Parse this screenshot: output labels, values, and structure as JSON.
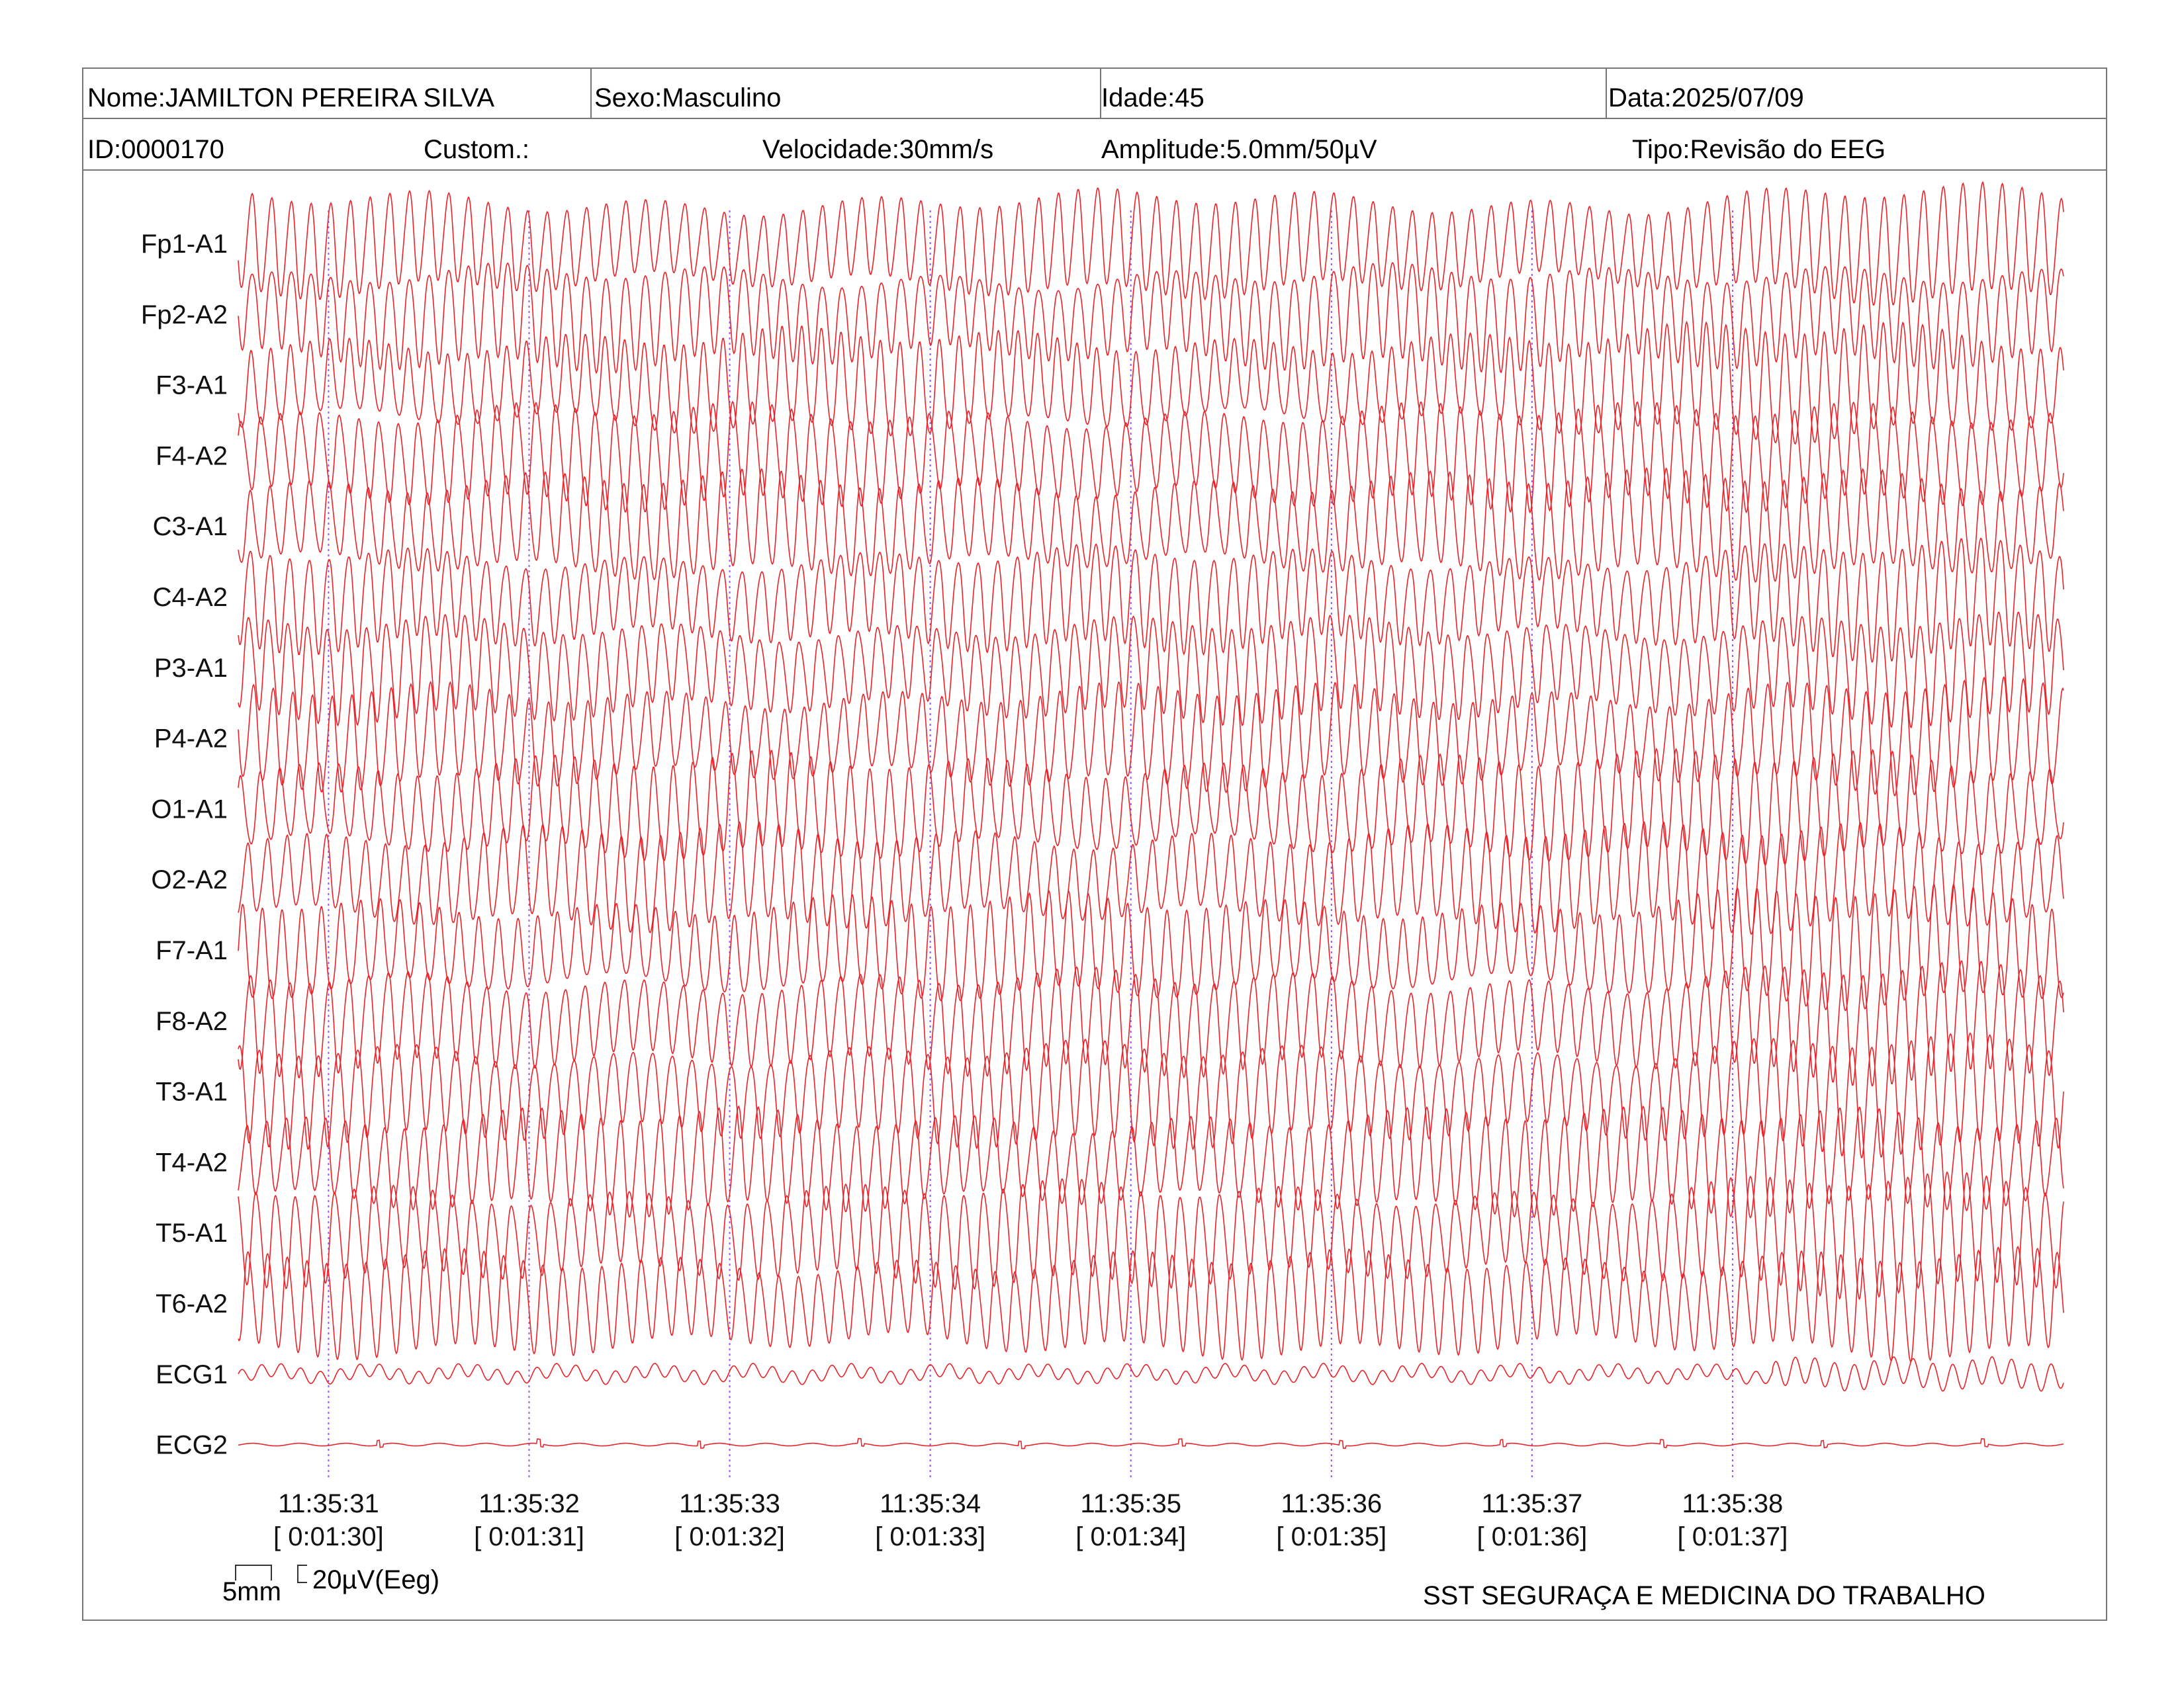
{
  "header": {
    "nome": "Nome:JAMILTON PEREIRA SILVA",
    "sexo": "Sexo:Masculino",
    "idade": "Idade:45",
    "data": "Data:2025/07/09",
    "id": "ID:0000170",
    "custom": "Custom.:",
    "velocidade": "Velocidade:30mm/s",
    "amplitude": "Amplitude:5.0mm/50µV",
    "tipo": "Tipo:Revisão do EEG"
  },
  "chart_data": {
    "type": "line",
    "channels": [
      "Fp1-A1",
      "Fp2-A2",
      "F3-A1",
      "F4-A2",
      "C3-A1",
      "C4-A2",
      "P3-A1",
      "P4-A2",
      "O1-A1",
      "O2-A2",
      "F7-A1",
      "F8-A2",
      "T3-A1",
      "T4-A2",
      "T5-A1",
      "T6-A2",
      "ECG1",
      "ECG2"
    ],
    "time_marks": [
      {
        "clock": "11:35:31",
        "elapsed": "[ 0:01:30]"
      },
      {
        "clock": "11:35:32",
        "elapsed": "[ 0:01:31]"
      },
      {
        "clock": "11:35:33",
        "elapsed": "[ 0:01:32]"
      },
      {
        "clock": "11:35:34",
        "elapsed": "[ 0:01:33]"
      },
      {
        "clock": "11:35:35",
        "elapsed": "[ 0:01:34]"
      },
      {
        "clock": "11:35:36",
        "elapsed": "[ 0:01:35]"
      },
      {
        "clock": "11:35:37",
        "elapsed": "[ 0:01:36]"
      },
      {
        "clock": "11:35:38",
        "elapsed": "[ 0:01:37]"
      }
    ],
    "time_range_s": [
      -0.45,
      8.65
    ],
    "eeg_frequency_hz": 10.2,
    "trace_color": "#e8242a",
    "marker_color": "#a050f0"
  },
  "scale": {
    "time_label": "5mm",
    "amp_label": "20µV(Eeg)"
  },
  "footer": {
    "company": "SST SEGURAÇA E MEDICINA DO TRABALHO"
  }
}
